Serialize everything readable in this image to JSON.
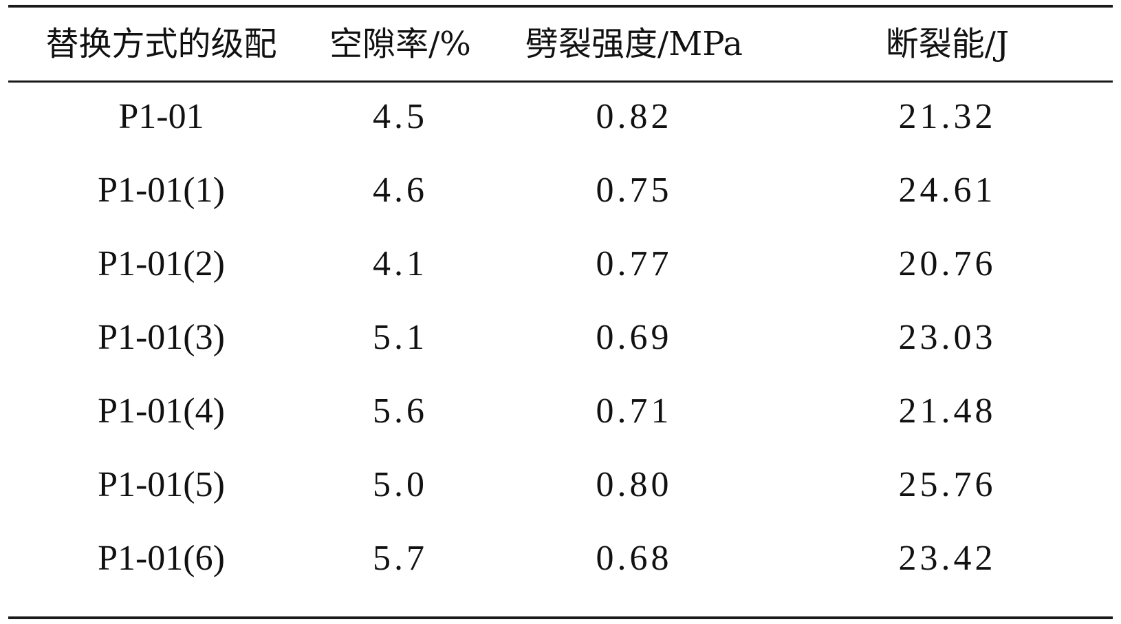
{
  "table": {
    "headers": [
      "替换方式的级配",
      "空隙率/%",
      "劈裂强度/MPa",
      "断裂能/J"
    ],
    "rows": [
      [
        "P1-01",
        "4.5",
        "0.82",
        "21.32"
      ],
      [
        "P1-01(1)",
        "4.6",
        "0.75",
        "24.61"
      ],
      [
        "P1-01(2)",
        "4.1",
        "0.77",
        "20.76"
      ],
      [
        "P1-01(3)",
        "5.1",
        "0.69",
        "23.03"
      ],
      [
        "P1-01(4)",
        "5.6",
        "0.71",
        "21.48"
      ],
      [
        "P1-01(5)",
        "5.0",
        "0.80",
        "25.76"
      ],
      [
        "P1-01(6)",
        "5.7",
        "0.68",
        "23.42"
      ]
    ]
  }
}
